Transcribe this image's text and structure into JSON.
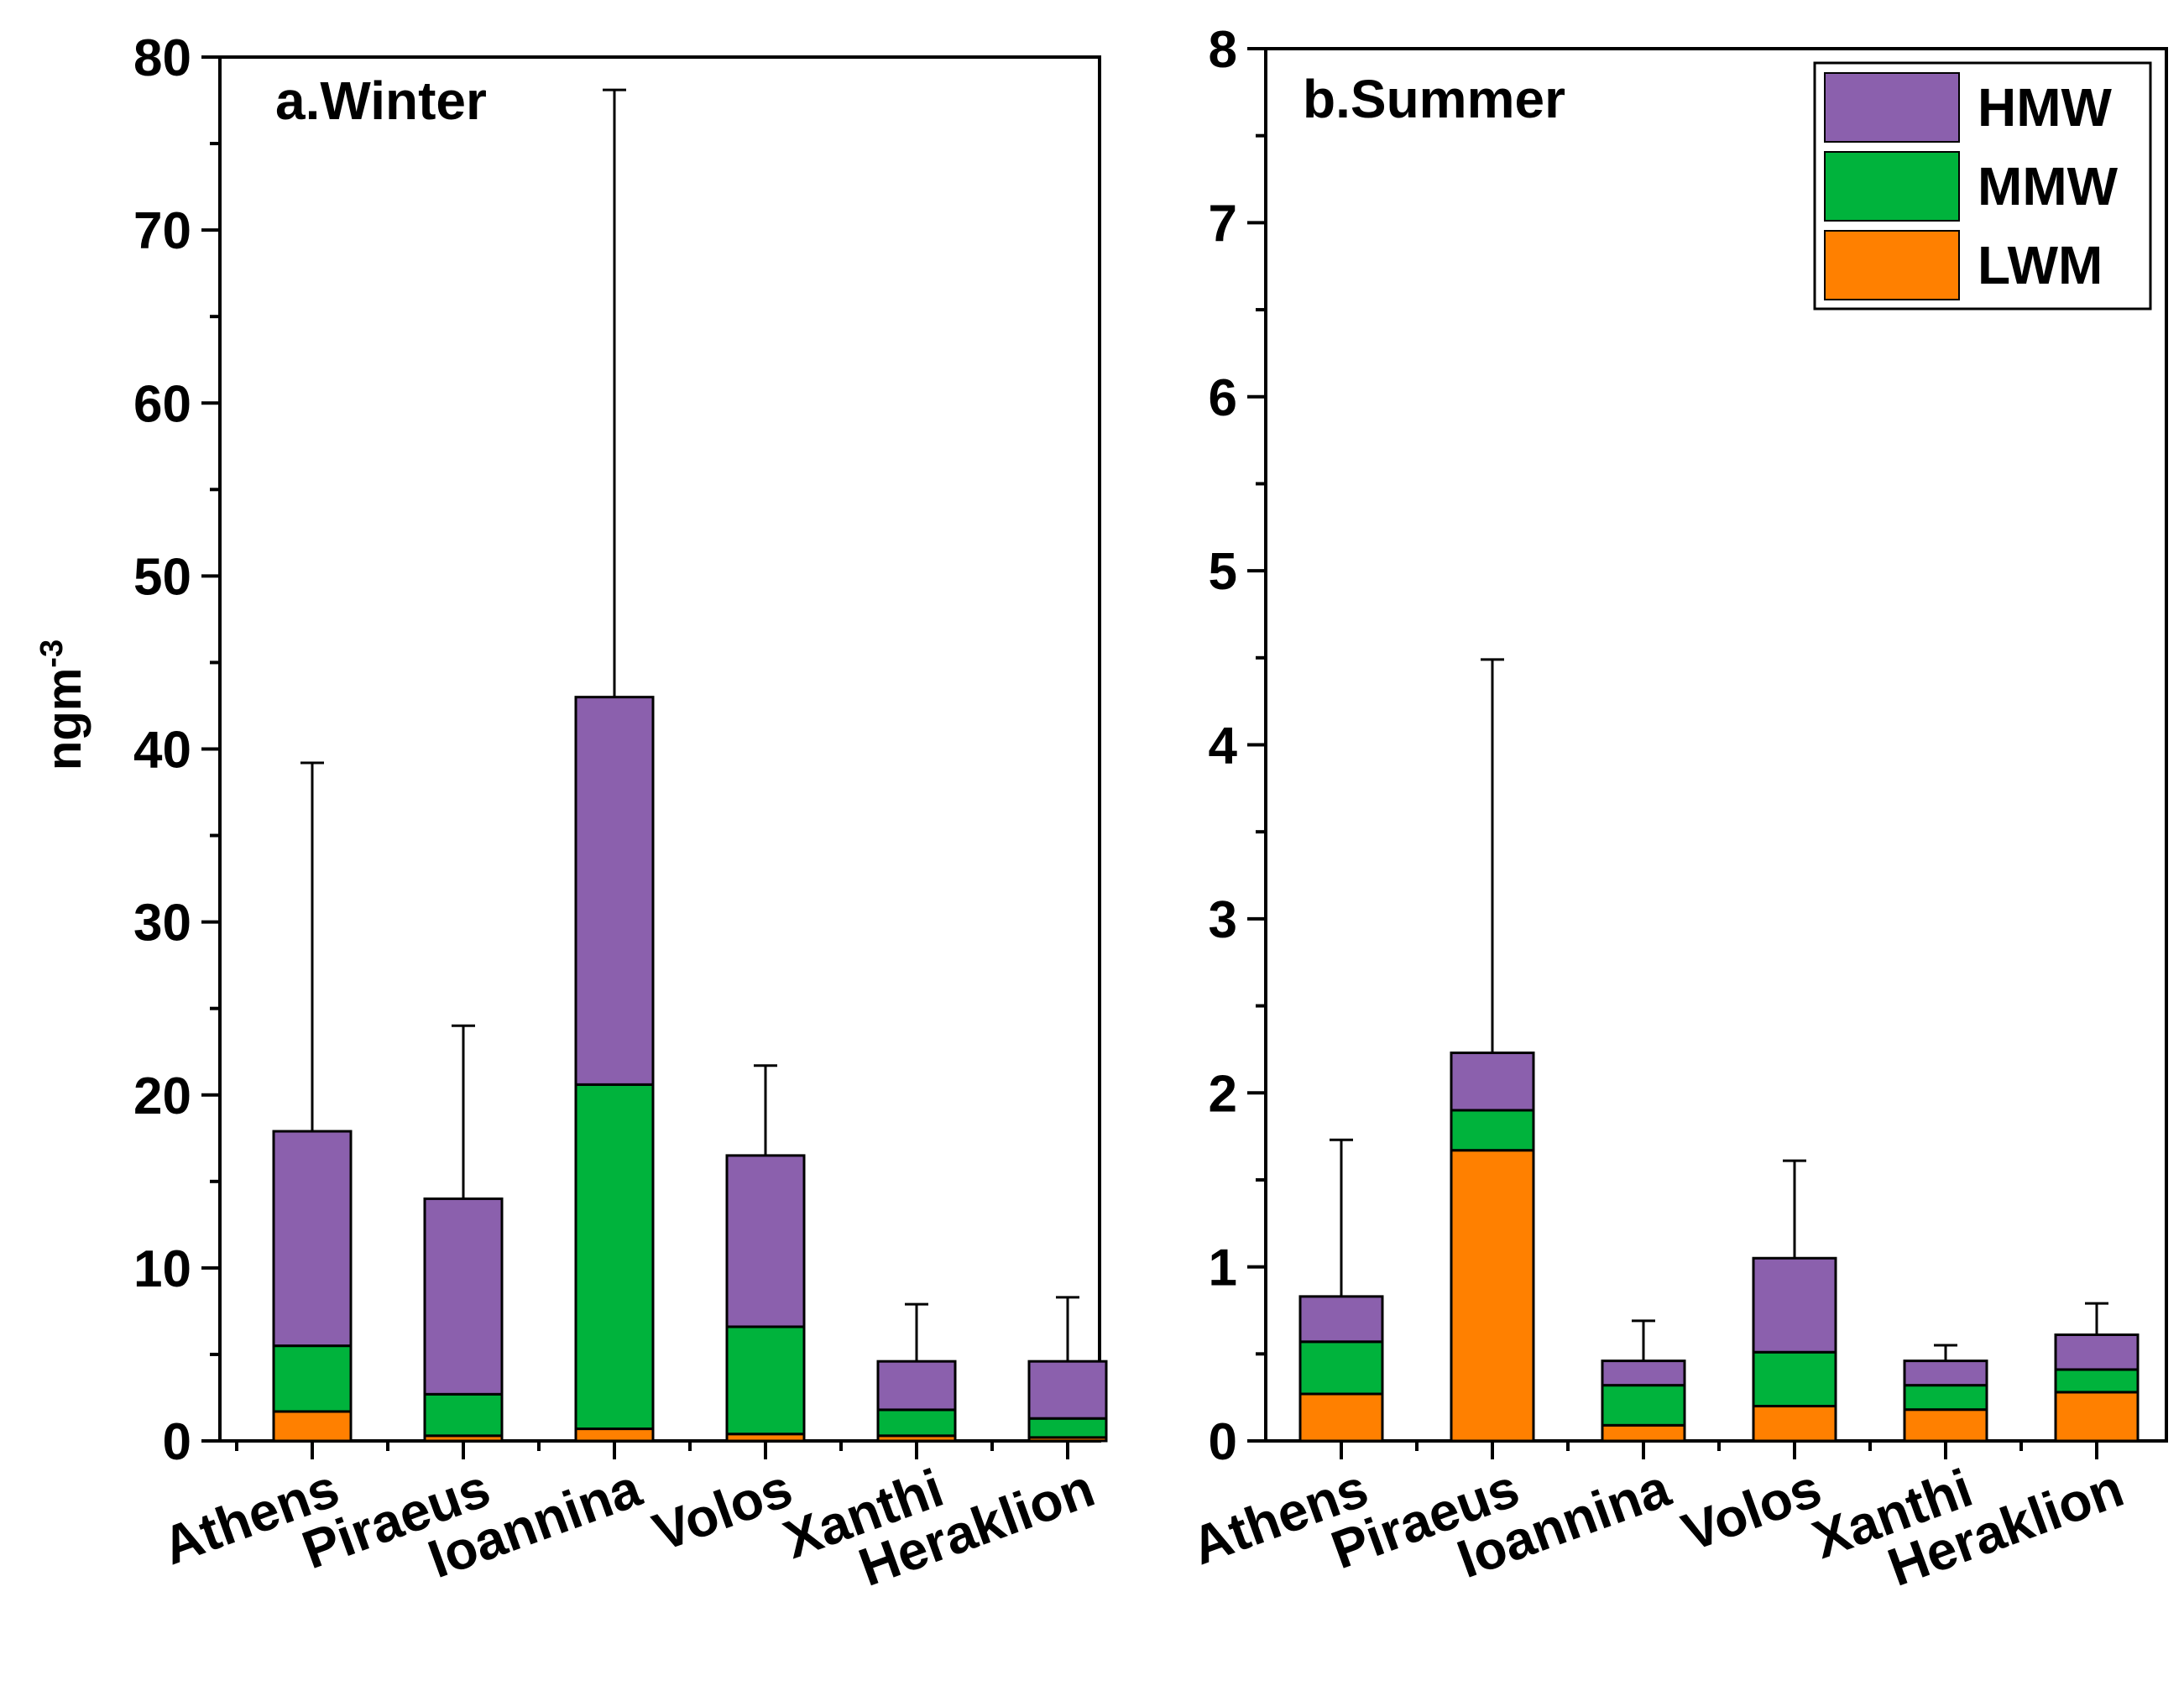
{
  "figure": {
    "ylabel_base": "ngm",
    "ylabel_sup": "-3",
    "legend": [
      {
        "name": "HMW",
        "color": "#8b60ad"
      },
      {
        "name": "MMW",
        "color": "#00b33c"
      },
      {
        "name": "LWM",
        "color": "#ff8000"
      }
    ]
  },
  "chart_data": [
    {
      "type": "bar",
      "stacked": true,
      "title": "a.Winter",
      "xlabel": "",
      "ylabel": "ngm-3",
      "ylim": [
        0,
        80
      ],
      "yticks": [
        0,
        10,
        20,
        30,
        40,
        50,
        60,
        70,
        80
      ],
      "categories": [
        "Athens",
        "Piraeus",
        "Ioannina",
        "Volos",
        "Xanthi",
        "Heraklion"
      ],
      "series": [
        {
          "name": "LWM",
          "color": "#ff8000",
          "values": [
            1.7,
            0.3,
            0.7,
            0.4,
            0.3,
            0.2
          ]
        },
        {
          "name": "MMW",
          "color": "#00b33c",
          "values": [
            3.8,
            2.4,
            19.9,
            6.2,
            1.5,
            1.1
          ]
        },
        {
          "name": "HMW",
          "color": "#8b60ad",
          "values": [
            12.4,
            11.3,
            22.4,
            9.9,
            2.8,
            3.3
          ]
        }
      ],
      "totals": [
        17.9,
        14.0,
        43.0,
        16.5,
        4.6,
        4.6
      ],
      "error_upper": [
        39.2,
        24.0,
        78.1,
        21.7,
        7.9,
        8.3
      ]
    },
    {
      "type": "bar",
      "stacked": true,
      "title": "b.Summer",
      "xlabel": "",
      "ylabel": "",
      "ylim": [
        0,
        8
      ],
      "yticks": [
        0,
        1,
        2,
        3,
        4,
        5,
        6,
        7,
        8
      ],
      "categories": [
        "Athens",
        "Piraeus",
        "Ioannina",
        "Volos",
        "Xanthi",
        "Heraklion"
      ],
      "legend_position": "top-right",
      "series": [
        {
          "name": "LWM",
          "color": "#ff8000",
          "values": [
            0.27,
            1.67,
            0.09,
            0.2,
            0.18,
            0.28
          ]
        },
        {
          "name": "MMW",
          "color": "#00b33c",
          "values": [
            0.3,
            0.23,
            0.23,
            0.31,
            0.14,
            0.13
          ]
        },
        {
          "name": "HMW",
          "color": "#8b60ad",
          "values": [
            0.26,
            0.33,
            0.14,
            0.54,
            0.14,
            0.2
          ]
        }
      ],
      "totals": [
        0.83,
        2.23,
        0.46,
        1.05,
        0.46,
        0.61
      ],
      "error_upper": [
        1.73,
        4.49,
        0.69,
        1.61,
        0.55,
        0.79
      ]
    }
  ]
}
